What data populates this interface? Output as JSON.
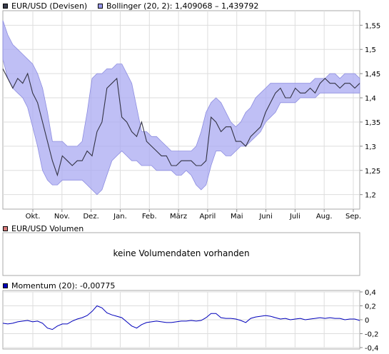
{
  "legends": {
    "price": {
      "label": "EUR/USD (Devisen)",
      "color": "#3a3e4f"
    },
    "bollinger": {
      "label": "Bollinger (20, 2): 1,409068 – 1,439792",
      "color": "#9999ee"
    },
    "volume": {
      "label": "EUR/USD Volumen",
      "color": "#d77a7a"
    },
    "momentum": {
      "label": "Momentum (20): -0,00775",
      "color": "#0000bb"
    }
  },
  "no_volume_text": "keine Volumendaten vorhanden",
  "chart_data": [
    {
      "type": "line",
      "title": "EUR/USD (Devisen)",
      "x_tick_labels": [
        "Okt.",
        "Nov.",
        "Dez.",
        "Jan.",
        "Feb.",
        "März",
        "April",
        "Mai",
        "Juni",
        "Juli",
        "Aug.",
        "Sep."
      ],
      "y_tick_labels": [
        "1,55",
        "1,5",
        "1,45",
        "1,4",
        "1,35",
        "1,3",
        "1,25",
        "1,2"
      ],
      "ylim": [
        1.17,
        1.58
      ],
      "grid": true,
      "series": [
        {
          "name": "EUR/USD (Devisen)",
          "color": "#3a3e4f",
          "values": [
            1.46,
            1.44,
            1.42,
            1.44,
            1.43,
            1.45,
            1.41,
            1.39,
            1.35,
            1.31,
            1.27,
            1.24,
            1.28,
            1.27,
            1.26,
            1.27,
            1.27,
            1.29,
            1.28,
            1.33,
            1.35,
            1.42,
            1.43,
            1.44,
            1.36,
            1.35,
            1.33,
            1.32,
            1.35,
            1.31,
            1.3,
            1.29,
            1.28,
            1.28,
            1.26,
            1.26,
            1.27,
            1.27,
            1.27,
            1.26,
            1.26,
            1.27,
            1.36,
            1.35,
            1.33,
            1.34,
            1.34,
            1.31,
            1.31,
            1.3,
            1.32,
            1.33,
            1.34,
            1.37,
            1.39,
            1.41,
            1.42,
            1.4,
            1.4,
            1.42,
            1.41,
            1.41,
            1.42,
            1.41,
            1.43,
            1.44,
            1.43,
            1.43,
            1.42,
            1.43,
            1.43,
            1.42,
            1.43
          ]
        },
        {
          "name": "Bollinger (20, 2)",
          "role": "band",
          "color": "#9999ee",
          "upper": [
            1.56,
            1.53,
            1.51,
            1.5,
            1.49,
            1.48,
            1.47,
            1.45,
            1.42,
            1.37,
            1.31,
            1.31,
            1.31,
            1.3,
            1.3,
            1.3,
            1.31,
            1.37,
            1.44,
            1.45,
            1.45,
            1.46,
            1.46,
            1.47,
            1.47,
            1.45,
            1.43,
            1.38,
            1.33,
            1.33,
            1.32,
            1.32,
            1.31,
            1.3,
            1.29,
            1.29,
            1.29,
            1.29,
            1.29,
            1.3,
            1.33,
            1.37,
            1.39,
            1.4,
            1.39,
            1.37,
            1.35,
            1.34,
            1.35,
            1.37,
            1.38,
            1.4,
            1.41,
            1.42,
            1.43,
            1.43,
            1.43,
            1.43,
            1.43,
            1.43,
            1.43,
            1.43,
            1.43,
            1.44,
            1.44,
            1.44,
            1.45,
            1.45,
            1.44,
            1.45,
            1.45,
            1.45,
            1.44
          ],
          "lower": [
            1.48,
            1.44,
            1.42,
            1.41,
            1.4,
            1.38,
            1.34,
            1.3,
            1.25,
            1.23,
            1.22,
            1.22,
            1.23,
            1.23,
            1.23,
            1.23,
            1.23,
            1.22,
            1.21,
            1.2,
            1.21,
            1.24,
            1.27,
            1.28,
            1.29,
            1.28,
            1.27,
            1.27,
            1.26,
            1.26,
            1.26,
            1.25,
            1.25,
            1.25,
            1.25,
            1.24,
            1.24,
            1.25,
            1.24,
            1.22,
            1.21,
            1.22,
            1.26,
            1.29,
            1.29,
            1.28,
            1.28,
            1.29,
            1.3,
            1.3,
            1.31,
            1.32,
            1.33,
            1.35,
            1.36,
            1.37,
            1.39,
            1.39,
            1.39,
            1.39,
            1.4,
            1.4,
            1.4,
            1.4,
            1.41,
            1.41,
            1.41,
            1.41,
            1.41,
            1.41,
            1.41,
            1.41,
            1.41
          ]
        }
      ]
    },
    {
      "type": "line",
      "title": "EUR/USD Volumen",
      "values": []
    },
    {
      "type": "line",
      "title": "Momentum (20): -0,00775",
      "y_tick_labels": [
        "0,4",
        "0,2",
        "0",
        "-0,2",
        "-0,4"
      ],
      "ylim": [
        -0.4,
        0.4
      ],
      "grid": true,
      "series": [
        {
          "name": "Momentum (20)",
          "color": "#0000bb",
          "values": [
            -0.05,
            -0.06,
            -0.05,
            -0.03,
            -0.02,
            -0.01,
            -0.03,
            -0.02,
            -0.05,
            -0.12,
            -0.14,
            -0.09,
            -0.06,
            -0.06,
            -0.02,
            0.01,
            0.03,
            0.06,
            0.12,
            0.2,
            0.17,
            0.1,
            0.07,
            0.05,
            0.03,
            -0.03,
            -0.09,
            -0.12,
            -0.07,
            -0.04,
            -0.03,
            -0.02,
            -0.03,
            -0.04,
            -0.04,
            -0.03,
            -0.02,
            -0.02,
            -0.01,
            -0.02,
            -0.01,
            0.03,
            0.09,
            0.09,
            0.03,
            0.02,
            0.02,
            0.01,
            -0.01,
            -0.04,
            0.02,
            0.04,
            0.05,
            0.06,
            0.05,
            0.03,
            0.01,
            0.02,
            0.0,
            0.01,
            0.02,
            0.0,
            0.01,
            0.02,
            0.03,
            0.02,
            0.03,
            0.02,
            0.02,
            0.0,
            0.01,
            0.01,
            -0.01
          ]
        }
      ]
    }
  ]
}
